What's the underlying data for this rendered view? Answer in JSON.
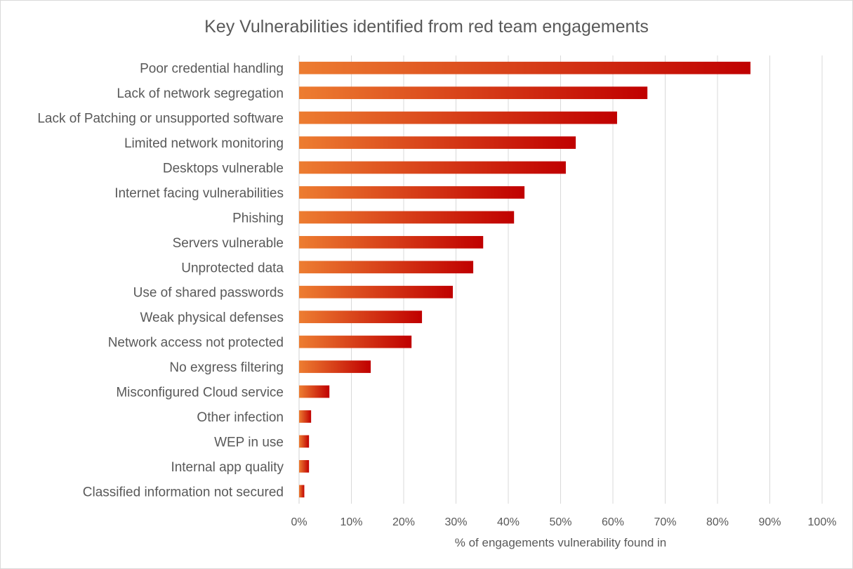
{
  "chart_data": {
    "type": "bar",
    "orientation": "horizontal",
    "title": "Key Vulnerabilities identified from red team engagements",
    "xlabel": "% of engagements vulnerability found in",
    "ylabel": "",
    "xlim": [
      0,
      100
    ],
    "x_ticks": [
      "0%",
      "10%",
      "20%",
      "30%",
      "40%",
      "50%",
      "60%",
      "70%",
      "80%",
      "90%",
      "100%"
    ],
    "grid": "vertical",
    "legend": "none",
    "categories": [
      "Poor credential handling",
      "Lack of network segregation",
      "Lack of Patching or unsupported software",
      "Limited network monitoring",
      "Desktops vulnerable",
      "Internet facing vulnerabilities",
      "Phishing",
      "Servers vulnerable",
      "Unprotected data",
      "Use of shared passwords",
      "Weak physical defenses",
      "Network access not protected",
      "No exgress filtering",
      "Misconfigured Cloud service",
      "Other infection",
      "WEP in use",
      "Internal app quality",
      "Classified information not secured"
    ],
    "values": [
      86.3,
      66.6,
      60.8,
      52.9,
      51.0,
      43.1,
      41.1,
      35.2,
      33.3,
      29.4,
      23.5,
      21.5,
      13.7,
      5.8,
      2.3,
      1.9,
      1.9,
      1.0
    ],
    "colors": {
      "bar_start": "#ed7d31",
      "bar_end": "#c00000",
      "grid": "#d9d9d9",
      "text": "#595959"
    }
  }
}
